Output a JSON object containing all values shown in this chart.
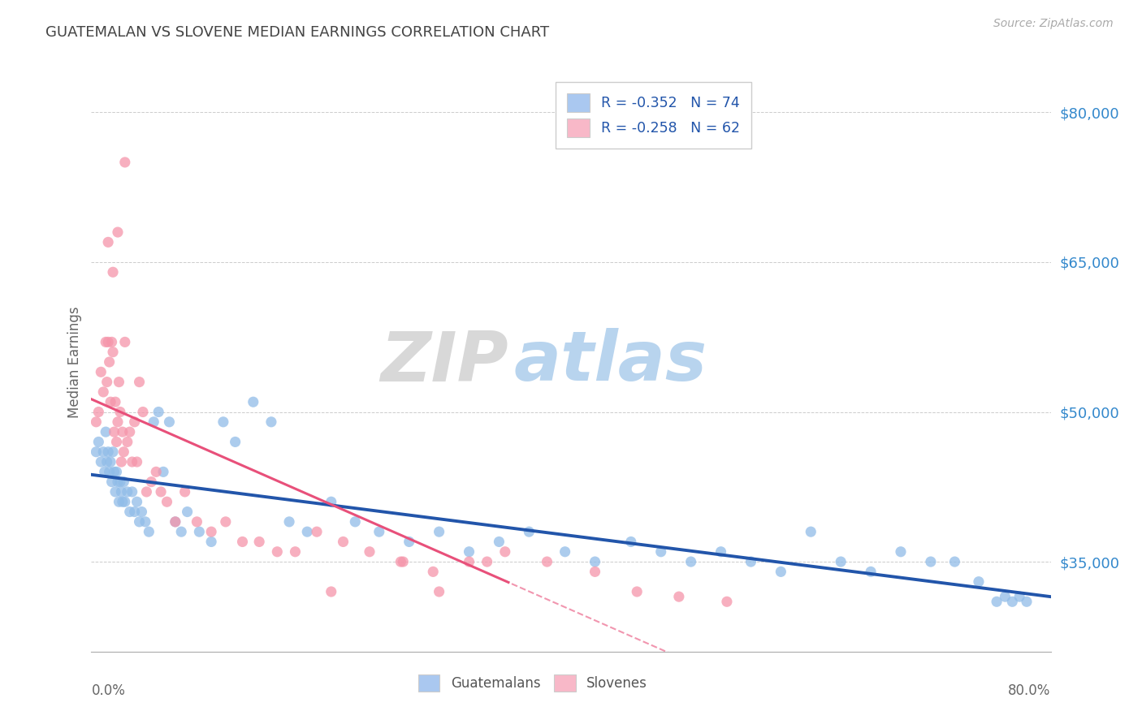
{
  "title": "GUATEMALAN VS SLOVENE MEDIAN EARNINGS CORRELATION CHART",
  "source": "Source: ZipAtlas.com",
  "ylabel": "Median Earnings",
  "x_min": 0.0,
  "x_max": 0.8,
  "y_min": 26000,
  "y_max": 84000,
  "yticks": [
    35000,
    50000,
    65000,
    80000
  ],
  "ytick_labels": [
    "$35,000",
    "$50,000",
    "$65,000",
    "$80,000"
  ],
  "watermark_zip_color": "#d8d8d8",
  "watermark_atlas_color": "#b8d4ee",
  "blue_dot_color": "#90bce8",
  "pink_dot_color": "#f595aa",
  "blue_line_color": "#2255aa",
  "pink_line_color": "#e8507a",
  "blue_legend_color": "#aac8f0",
  "pink_legend_color": "#f8b8c8",
  "blue_x": [
    0.004,
    0.006,
    0.008,
    0.01,
    0.011,
    0.012,
    0.013,
    0.014,
    0.015,
    0.016,
    0.017,
    0.018,
    0.019,
    0.02,
    0.021,
    0.022,
    0.023,
    0.024,
    0.025,
    0.026,
    0.027,
    0.028,
    0.03,
    0.032,
    0.034,
    0.036,
    0.038,
    0.04,
    0.042,
    0.045,
    0.048,
    0.052,
    0.056,
    0.06,
    0.065,
    0.07,
    0.075,
    0.08,
    0.09,
    0.1,
    0.11,
    0.12,
    0.135,
    0.15,
    0.165,
    0.18,
    0.2,
    0.22,
    0.24,
    0.265,
    0.29,
    0.315,
    0.34,
    0.365,
    0.395,
    0.42,
    0.45,
    0.475,
    0.5,
    0.525,
    0.55,
    0.575,
    0.6,
    0.625,
    0.65,
    0.675,
    0.7,
    0.72,
    0.74,
    0.755,
    0.762,
    0.768,
    0.774,
    0.78
  ],
  "blue_y": [
    46000,
    47000,
    45000,
    46000,
    44000,
    48000,
    45000,
    46000,
    44000,
    45000,
    43000,
    46000,
    44000,
    42000,
    44000,
    43000,
    41000,
    43000,
    42000,
    41000,
    43000,
    41000,
    42000,
    40000,
    42000,
    40000,
    41000,
    39000,
    40000,
    39000,
    38000,
    49000,
    50000,
    44000,
    49000,
    39000,
    38000,
    40000,
    38000,
    37000,
    49000,
    47000,
    51000,
    49000,
    39000,
    38000,
    41000,
    39000,
    38000,
    37000,
    38000,
    36000,
    37000,
    38000,
    36000,
    35000,
    37000,
    36000,
    35000,
    36000,
    35000,
    34000,
    38000,
    35000,
    34000,
    36000,
    35000,
    35000,
    33000,
    31000,
    31500,
    31000,
    31500,
    31000
  ],
  "pink_x": [
    0.004,
    0.006,
    0.008,
    0.01,
    0.012,
    0.013,
    0.014,
    0.015,
    0.016,
    0.017,
    0.018,
    0.019,
    0.02,
    0.021,
    0.022,
    0.023,
    0.024,
    0.025,
    0.026,
    0.027,
    0.028,
    0.03,
    0.032,
    0.034,
    0.036,
    0.038,
    0.04,
    0.043,
    0.046,
    0.05,
    0.054,
    0.058,
    0.063,
    0.07,
    0.078,
    0.088,
    0.1,
    0.112,
    0.126,
    0.14,
    0.155,
    0.17,
    0.188,
    0.21,
    0.232,
    0.258,
    0.285,
    0.315,
    0.345,
    0.014,
    0.018,
    0.022,
    0.028,
    0.2,
    0.26,
    0.29,
    0.33,
    0.38,
    0.42,
    0.455,
    0.49,
    0.53
  ],
  "pink_y": [
    49000,
    50000,
    54000,
    52000,
    57000,
    53000,
    57000,
    55000,
    51000,
    57000,
    56000,
    48000,
    51000,
    47000,
    49000,
    53000,
    50000,
    45000,
    48000,
    46000,
    57000,
    47000,
    48000,
    45000,
    49000,
    45000,
    53000,
    50000,
    42000,
    43000,
    44000,
    42000,
    41000,
    39000,
    42000,
    39000,
    38000,
    39000,
    37000,
    37000,
    36000,
    36000,
    38000,
    37000,
    36000,
    35000,
    34000,
    35000,
    36000,
    67000,
    64000,
    68000,
    75000,
    32000,
    35000,
    32000,
    35000,
    35000,
    34000,
    32000,
    31500,
    31000
  ]
}
